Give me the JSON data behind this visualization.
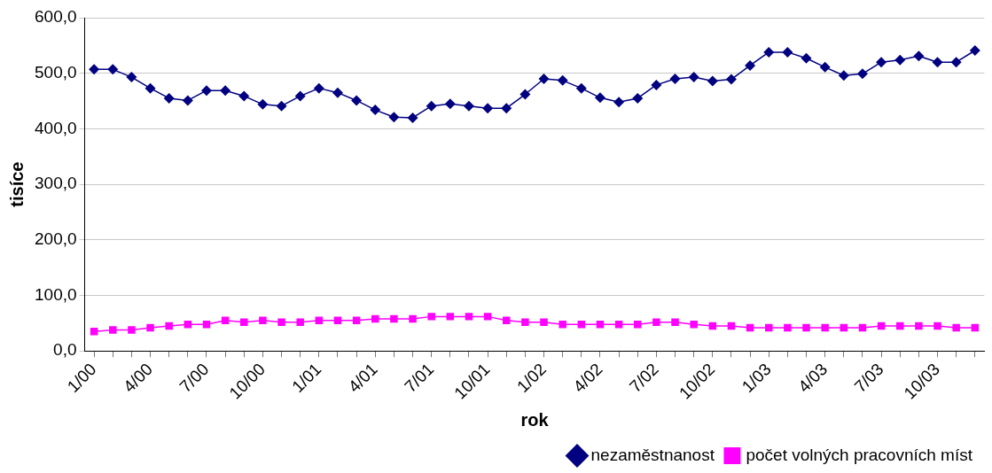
{
  "chart_data": {
    "type": "line",
    "xlabel": "rok",
    "ylabel": "tisíce",
    "categories": [
      "1/00",
      null,
      null,
      "4/00",
      null,
      null,
      "7/00",
      null,
      null,
      "10/00",
      null,
      null,
      "1/01",
      null,
      null,
      "4/01",
      null,
      null,
      "7/01",
      null,
      null,
      "10/01",
      null,
      null,
      "1/02",
      null,
      null,
      "4/02",
      null,
      null,
      "7/02",
      null,
      null,
      "10/02",
      null,
      null,
      "1/03",
      null,
      null,
      "4/03",
      null,
      null,
      "7/03",
      null,
      null,
      "10/03",
      null,
      null
    ],
    "series": [
      {
        "name": "nezaměstnanost",
        "color": "#000080",
        "marker": "diamond",
        "values": [
          507,
          507,
          493,
          473,
          455,
          451,
          469,
          469,
          459,
          444,
          441,
          459,
          473,
          465,
          451,
          434,
          421,
          420,
          441,
          445,
          441,
          437,
          437,
          462,
          490,
          487,
          473,
          456,
          448,
          455,
          479,
          490,
          493,
          486,
          489,
          514,
          538,
          538,
          527,
          511,
          496,
          499,
          520,
          524,
          531,
          520,
          520,
          541
        ]
      },
      {
        "name": "počet volných pracovních míst",
        "color": "#ff00ff",
        "marker": "square",
        "values": [
          35,
          38,
          38,
          42,
          45,
          48,
          48,
          55,
          52,
          55,
          52,
          52,
          55,
          55,
          55,
          58,
          58,
          58,
          62,
          62,
          62,
          62,
          55,
          52,
          52,
          48,
          48,
          48,
          48,
          48,
          52,
          52,
          48,
          45,
          45,
          42,
          42,
          42,
          42,
          42,
          42,
          42,
          45,
          45,
          45,
          45,
          42,
          42
        ]
      }
    ],
    "ylim": [
      0,
      600
    ],
    "yticks": [
      {
        "value": 0,
        "label": "0,0"
      },
      {
        "value": 100,
        "label": "100,0"
      },
      {
        "value": 200,
        "label": "200,0"
      },
      {
        "value": 300,
        "label": "300,0"
      },
      {
        "value": 400,
        "label": "400,0"
      },
      {
        "value": 500,
        "label": "500,0"
      },
      {
        "value": 600,
        "label": "600,0"
      }
    ],
    "grid": "y",
    "legend": "bottom right",
    "line_style": "solid"
  }
}
